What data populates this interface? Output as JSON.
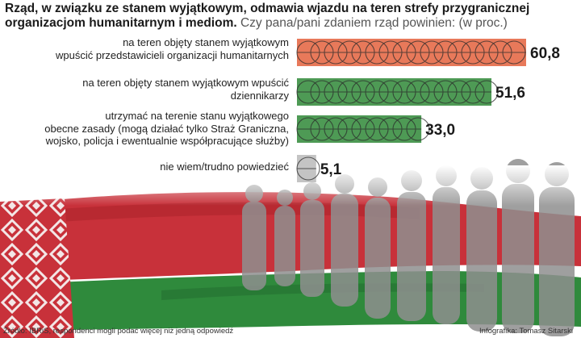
{
  "title": {
    "bold": "Rząd, w związku ze stanem wyjątkowym, odmawia wjazdu na teren strefy przygranicznej organizacjom humanitarnym i mediom.",
    "subtitle": "Czy pana/pani zdaniem rząd powinien: (w proc.)"
  },
  "chart_data": {
    "type": "bar",
    "orientation": "horizontal",
    "categories": [
      "na teren objęty stanem wyjątkowym wpuścić przedstawicieli organizacji humanitarnych",
      "na teren objęty stanem wyjątkowym wpuścić dziennikarzy",
      "utrzymać na terenie stanu wyjątkowego obecne zasady (mogą działać tylko Straż Graniczna, wojsko, policja i ewentualnie współpracujące służby)",
      "nie wiem/trudno powiedzieć"
    ],
    "values": [
      60.8,
      51.6,
      33.0,
      5.1
    ],
    "value_labels": [
      "60,8",
      "51,6",
      "33,0",
      "5,1"
    ],
    "bar_colors": [
      "#e8795a",
      "#4e9a55",
      "#4e9a55",
      "#c4c4c4"
    ],
    "xlim": [
      0,
      60.8
    ]
  },
  "labels": [
    [
      "na teren objęty stanem wyjątkowym",
      "wpuścić przedstawicieli organizacji humanitarnych"
    ],
    [
      "na teren objęty stanem wyjątkowym wpuścić",
      "dziennikarzy"
    ],
    [
      "utrzymać na terenie stanu wyjątkowego",
      "obecne zasady (mogą działać tylko Straż Graniczna,",
      "wojsko, policja i ewentualnie współpracujące służby)"
    ],
    [
      "nie wiem/trudno powiedzieć"
    ]
  ],
  "footer": {
    "source": "Źródło: IBRiS, respondenci mogli podać więcej niż jedną odpowiedź",
    "credit": "Infografika: Tomasz Sitarski"
  },
  "colors": {
    "flag_red": "#c8313a",
    "flag_green": "#2f8a3c",
    "crowd": "#8f8f8f"
  }
}
